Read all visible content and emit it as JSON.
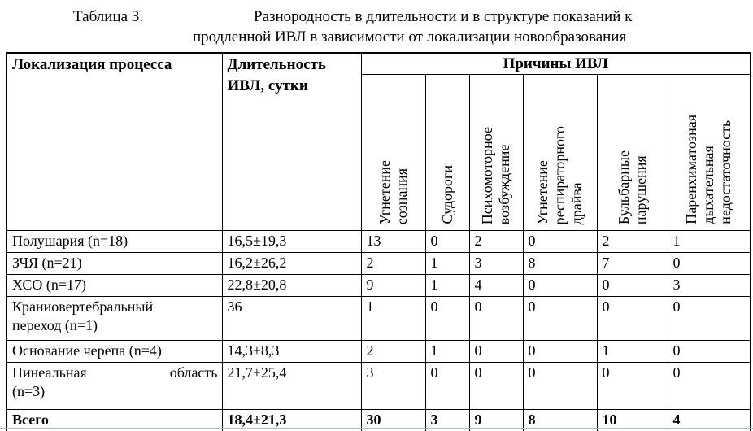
{
  "title": {
    "caption_label": "Таблица 3.",
    "line1": "Разнородность в длительности и в структуре показаний к",
    "line2": "продленной ИВЛ в зависимости от локализации новообразования"
  },
  "table": {
    "col_headers": {
      "localization": "Локализация процесса",
      "duration": "Длительность\nИВЛ, сутки",
      "causes_group": "Причины ИВЛ",
      "causes": [
        "Угнетение\nсознания",
        "Судороги",
        "Психомоторное\nвозбуждение",
        "Угнетение\nреспираторного\nдрайва",
        "Бульбарные\nнарушения",
        "Паренхиматозная\nдыхательная\nнедостаточность"
      ]
    },
    "rows": [
      {
        "location": "Полушария (n=18)",
        "duration": "16,5±19,3",
        "causes": [
          "13",
          "0",
          "2",
          "0",
          "2",
          "1"
        ]
      },
      {
        "location": "ЗЧЯ (n=21)",
        "duration": "16,2±26,2",
        "causes": [
          "2",
          "1",
          "3",
          "8",
          "7",
          "0"
        ]
      },
      {
        "location": "ХСО (n=17)",
        "duration": "22,8±20,8",
        "causes": [
          "9",
          "1",
          "4",
          "0",
          "0",
          "3"
        ]
      },
      {
        "location": "Краниовертебральный\nпереход (n=1)",
        "duration": "36",
        "causes": [
          "1",
          "0",
          "0",
          "0",
          "0",
          "0"
        ]
      },
      {
        "location": "Основание черепа (n=4)",
        "duration": "14,3±8,3",
        "causes": [
          "2",
          "1",
          "0",
          "0",
          "1",
          "0"
        ]
      },
      {
        "location": "Пинеальная область\n(n=3)",
        "duration": "21,7±25,4",
        "causes": [
          "3",
          "0",
          "0",
          "0",
          "0",
          "0"
        ],
        "justify": true
      },
      {
        "location": "Всего",
        "duration": "18,4±21,3",
        "causes": [
          "30",
          "3",
          "9",
          "8",
          "10",
          "4"
        ],
        "bold": true
      }
    ]
  },
  "page": {
    "bottom_rule_color": "#b3bcc5",
    "text_color": "#000000",
    "background_color": "#ffffff"
  }
}
